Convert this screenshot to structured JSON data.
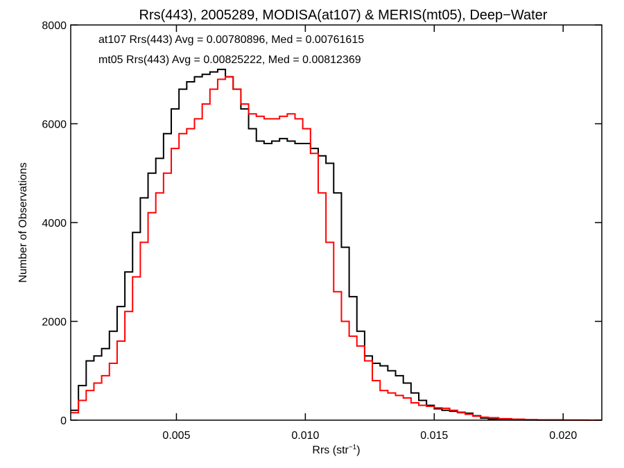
{
  "chart_data": {
    "type": "histogram",
    "title": "Rrs(443), 2005289, MODISA(at107) & MERIS(mt05), Deep−Water",
    "xlabel_base": "Rrs (str",
    "xlabel_sup": "−1",
    "xlabel_close": ")",
    "ylabel": "Number of Observations",
    "xlim": [
      0.0009,
      0.0215
    ],
    "ylim": [
      0,
      8000
    ],
    "x_ticks": [
      0.005,
      0.01,
      0.015,
      0.02
    ],
    "x_tick_labels": [
      "0.005",
      "0.010",
      "0.015",
      "0.020"
    ],
    "y_ticks": [
      0,
      2000,
      4000,
      6000,
      8000
    ],
    "y_tick_labels": [
      "0",
      "2000",
      "4000",
      "6000",
      "8000"
    ],
    "annotations": [
      {
        "text": "at107 Rrs(443) Avg = 0.00780896, Med = 0.00761615",
        "color": "#000000"
      },
      {
        "text": "mt05 Rrs(443) Avg = 0.00825222, Med = 0.00812369",
        "color": "#ff0000"
      }
    ],
    "series": [
      {
        "color": "#000000",
        "x": [
          0.0009,
          0.0012,
          0.0015,
          0.0018,
          0.0021,
          0.0024,
          0.0027,
          0.003,
          0.0033,
          0.0036,
          0.0039,
          0.0042,
          0.0045,
          0.0048,
          0.0051,
          0.0054,
          0.0057,
          0.006,
          0.0063,
          0.0066,
          0.0069,
          0.0072,
          0.0075,
          0.0078,
          0.0081,
          0.0084,
          0.0087,
          0.009,
          0.0093,
          0.0096,
          0.0099,
          0.0102,
          0.0105,
          0.0108,
          0.0111,
          0.0114,
          0.0117,
          0.012,
          0.0123,
          0.0126,
          0.0129,
          0.0132,
          0.0135,
          0.0138,
          0.0141,
          0.0144,
          0.0147,
          0.015,
          0.0153,
          0.0156,
          0.0159,
          0.0162,
          0.0165,
          0.0168,
          0.0171,
          0.0175,
          0.018,
          0.0185,
          0.019,
          0.02,
          0.021,
          0.0215
        ],
        "y": [
          200,
          700,
          1200,
          1300,
          1450,
          1800,
          2300,
          3000,
          3800,
          4500,
          5000,
          5300,
          5800,
          6300,
          6700,
          6850,
          6950,
          7000,
          7050,
          7100,
          6950,
          6700,
          6300,
          5900,
          5650,
          5600,
          5650,
          5700,
          5650,
          5600,
          5600,
          5500,
          5350,
          5200,
          4600,
          3500,
          2500,
          1800,
          1300,
          1150,
          1100,
          1000,
          900,
          750,
          550,
          400,
          300,
          230,
          200,
          180,
          160,
          140,
          90,
          40,
          20,
          10,
          5,
          3,
          2,
          1,
          0,
          0
        ]
      },
      {
        "color": "#ff0000",
        "x": [
          0.0009,
          0.0012,
          0.0015,
          0.0018,
          0.0021,
          0.0024,
          0.0027,
          0.003,
          0.0033,
          0.0036,
          0.0039,
          0.0042,
          0.0045,
          0.0048,
          0.0051,
          0.0054,
          0.0057,
          0.006,
          0.0063,
          0.0066,
          0.0069,
          0.0072,
          0.0075,
          0.0078,
          0.0081,
          0.0084,
          0.0087,
          0.009,
          0.0093,
          0.0096,
          0.0099,
          0.0102,
          0.0105,
          0.0108,
          0.0111,
          0.0114,
          0.0117,
          0.012,
          0.0123,
          0.0126,
          0.0129,
          0.0132,
          0.0135,
          0.0138,
          0.0141,
          0.0144,
          0.0147,
          0.015,
          0.0153,
          0.0156,
          0.0159,
          0.0162,
          0.0165,
          0.0168,
          0.0171,
          0.0175,
          0.018,
          0.0185,
          0.019,
          0.02,
          0.021,
          0.0215
        ],
        "y": [
          150,
          400,
          600,
          750,
          900,
          1150,
          1600,
          2200,
          2900,
          3600,
          4200,
          4600,
          5000,
          5500,
          5800,
          5900,
          6100,
          6400,
          6700,
          6900,
          6950,
          6700,
          6400,
          6200,
          6150,
          6100,
          6100,
          6150,
          6200,
          6100,
          5900,
          5400,
          4600,
          3600,
          2600,
          2000,
          1700,
          1500,
          1200,
          800,
          600,
          550,
          500,
          450,
          350,
          300,
          280,
          250,
          240,
          200,
          150,
          120,
          80,
          60,
          50,
          30,
          20,
          10,
          5,
          0,
          0,
          0
        ]
      }
    ]
  }
}
